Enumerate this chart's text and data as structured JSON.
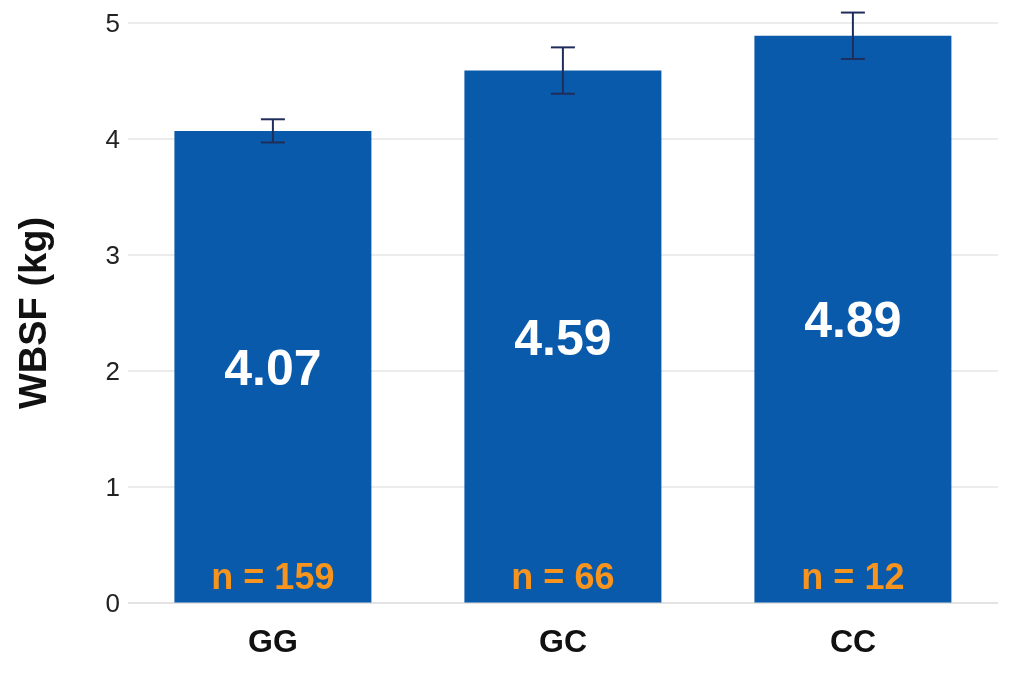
{
  "chart_data": {
    "type": "bar",
    "ylabel": "WBSF (kg)",
    "categories": [
      "GG",
      "GC",
      "CC"
    ],
    "values": [
      4.07,
      4.59,
      4.89
    ],
    "color": "#0a5aab",
    "errors": [
      0.1,
      0.2,
      0.2
    ],
    "ylim": [
      0,
      5
    ],
    "yticks": [
      0,
      1,
      2,
      3,
      4,
      5
    ],
    "grid": "y",
    "data_labels": true,
    "legend": false,
    "annotations": [
      "n = 159",
      "n = 66",
      "n = 12"
    ]
  }
}
